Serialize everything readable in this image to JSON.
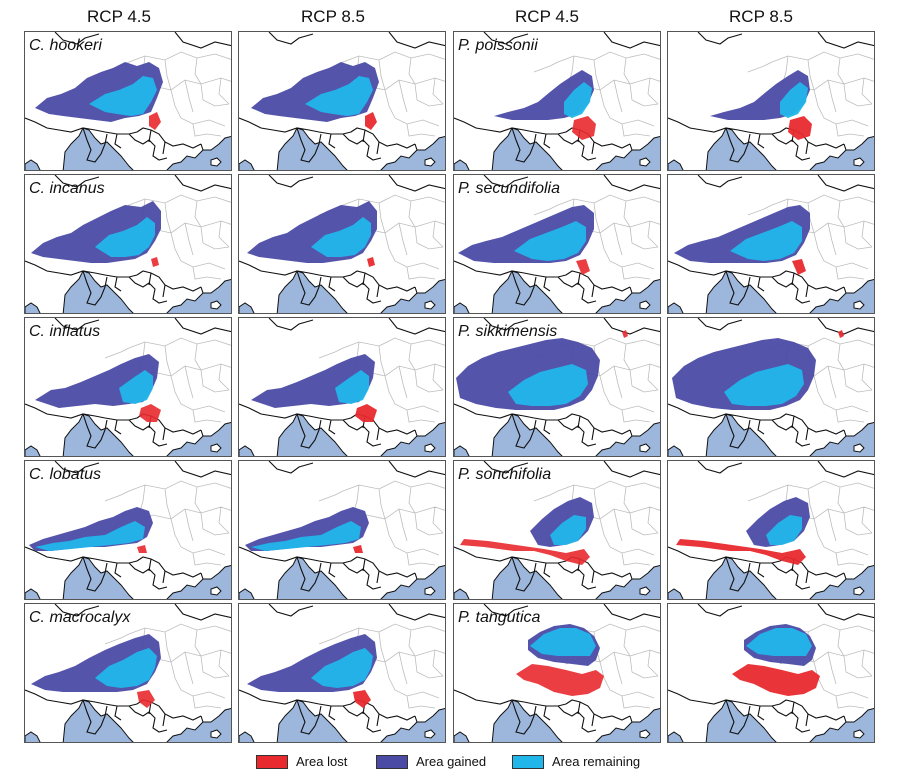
{
  "columns": [
    "RCP 4.5",
    "RCP 8.5",
    "RCP 4.5",
    "RCP 8.5"
  ],
  "species": {
    "left": [
      "C. hookeri",
      "C. incanus",
      "C. inflatus",
      "C. lobatus",
      "C. macrocalyx"
    ],
    "right": [
      "P. poissonii",
      "P. secundifolia",
      "P. sikkimensis",
      "P. sonchifolia",
      "P. tangutica"
    ]
  },
  "legend": [
    {
      "label": "Area lost",
      "color": "#e8292e"
    },
    {
      "label": "Area gained",
      "color": "#4b4ba6"
    },
    {
      "label": "Area remaining",
      "color": "#21b6ea"
    }
  ],
  "colors": {
    "sea": "#9cb6dc",
    "border": "#111111",
    "province": "#bdbdbd",
    "lost": "#e8292e",
    "gained": "#4b4ba6",
    "remaining": "#21b6ea"
  }
}
